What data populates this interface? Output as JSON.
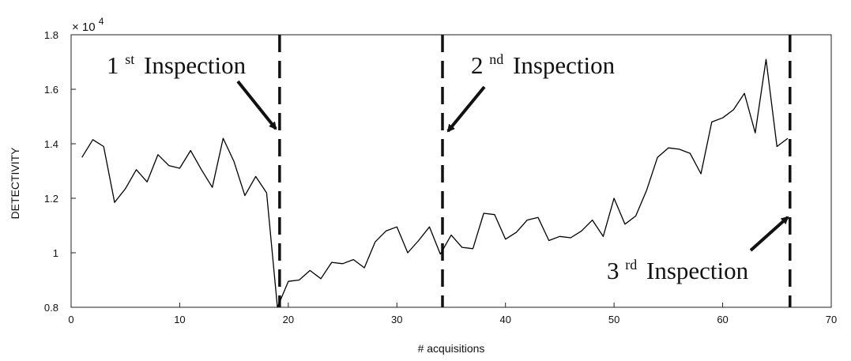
{
  "chart_data": {
    "type": "line",
    "xlabel": "# acquisitions",
    "ylabel": "DETECTIVITY",
    "xlim": [
      0,
      70
    ],
    "ylim": [
      0.8,
      1.8
    ],
    "y_multiplier": {
      "base": "× 10",
      "exponent": "4"
    },
    "x_ticks": [
      0,
      10,
      20,
      30,
      40,
      50,
      60,
      70
    ],
    "y_ticks": [
      0.8,
      1,
      1.2,
      1.4,
      1.6,
      1.8
    ],
    "x_tick_labels": [
      "0",
      "10",
      "20",
      "30",
      "40",
      "50",
      "60",
      "70"
    ],
    "y_tick_labels": [
      "0.8",
      "1",
      "1.2",
      "1.4",
      "1.6",
      "1.8"
    ],
    "grid": false,
    "line_color": "#000000",
    "series": [
      {
        "x": [
          1,
          2,
          3,
          4,
          5,
          6,
          7,
          8,
          9,
          10,
          11,
          12,
          13,
          14,
          15,
          16,
          17,
          18,
          19,
          20,
          21,
          22,
          23,
          24,
          25,
          26,
          27,
          28,
          29,
          30,
          31,
          32,
          33,
          34,
          35,
          36,
          37,
          38,
          39,
          40,
          41,
          42,
          43,
          44,
          45,
          46,
          47,
          48,
          49,
          50,
          51,
          52,
          53,
          54,
          55,
          56,
          57,
          58,
          59,
          60,
          61,
          62,
          63,
          64,
          65,
          66
        ],
        "values": [
          1.35,
          1.415,
          1.39,
          1.185,
          1.235,
          1.305,
          1.26,
          1.36,
          1.32,
          1.31,
          1.375,
          1.305,
          1.24,
          1.42,
          1.335,
          1.21,
          1.28,
          1.22,
          0.8,
          0.895,
          0.9,
          0.935,
          0.905,
          0.965,
          0.96,
          0.975,
          0.945,
          1.04,
          1.08,
          1.095,
          1.0,
          1.045,
          1.095,
          0.995,
          1.065,
          1.02,
          1.015,
          1.145,
          1.14,
          1.05,
          1.075,
          1.12,
          1.13,
          1.045,
          1.06,
          1.055,
          1.08,
          1.12,
          1.06,
          1.2,
          1.105,
          1.135,
          1.23,
          1.35,
          1.385,
          1.38,
          1.365,
          1.29,
          1.48,
          1.495,
          1.525,
          1.585,
          1.44,
          1.71,
          1.39,
          1.42
        ]
      }
    ],
    "vertical_lines": [
      {
        "x": 19.2,
        "style": "dashed"
      },
      {
        "x": 34.2,
        "style": "dashed"
      },
      {
        "x": 66.2,
        "style": "dashed"
      }
    ],
    "annotations": [
      {
        "num": "1",
        "sup": "st",
        "text": "Inspection"
      },
      {
        "num": "2",
        "sup": "nd",
        "text": "Inspection"
      },
      {
        "num": "3",
        "sup": "rd",
        "text": "Inspection"
      }
    ]
  }
}
